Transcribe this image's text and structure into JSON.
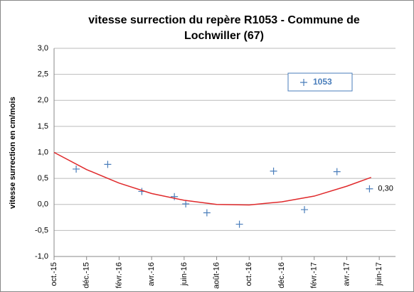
{
  "chart_data": {
    "type": "scatter",
    "title": "vitesse surrection du repère R1053 - Commune de Lochwiller (67)",
    "y_label": "vitesse surrection en cm/mois",
    "series": [
      {
        "name": "1053",
        "color": "#4a7ebb",
        "x": [
          1.36,
          3.3,
          5.4,
          7.4,
          8.1,
          9.4,
          11.4,
          13.5,
          15.4,
          17.4,
          19.4
        ],
        "values": [
          0.68,
          0.77,
          0.25,
          0.15,
          0.01,
          -0.16,
          -0.38,
          0.64,
          -0.1,
          0.63,
          0.3
        ],
        "value_labels": [
          null,
          null,
          null,
          null,
          null,
          null,
          null,
          null,
          null,
          null,
          "0,30"
        ]
      }
    ],
    "trendline": {
      "color": "#e0292b",
      "x": [
        0,
        2,
        4,
        6,
        8,
        10,
        12,
        14,
        16,
        18,
        19.5
      ],
      "values": [
        1.0,
        0.67,
        0.41,
        0.21,
        0.08,
        0.0,
        -0.01,
        0.05,
        0.16,
        0.35,
        0.52
      ]
    },
    "xlim": [
      0,
      21
    ],
    "xticks": [
      {
        "value": 0,
        "label": "oct.-15"
      },
      {
        "value": 2,
        "label": "déc.-15"
      },
      {
        "value": 4,
        "label": "févr.-16"
      },
      {
        "value": 6,
        "label": "avr.-16"
      },
      {
        "value": 8,
        "label": "juin-16"
      },
      {
        "value": 10,
        "label": "août-16"
      },
      {
        "value": 12,
        "label": "oct.-16"
      },
      {
        "value": 14,
        "label": "déc.-16"
      },
      {
        "value": 16,
        "label": "févr.-17"
      },
      {
        "value": 18,
        "label": "avr.-17"
      },
      {
        "value": 20,
        "label": "juin-17"
      }
    ],
    "ylim": [
      -1,
      3
    ],
    "yticks": [
      {
        "value": -1,
        "label": "-1,0"
      },
      {
        "value": -0.5,
        "label": "-0,5"
      },
      {
        "value": 0,
        "label": "0,0"
      },
      {
        "value": 0.5,
        "label": "0,5"
      },
      {
        "value": 1,
        "label": "1,0"
      },
      {
        "value": 1.5,
        "label": "1,5"
      },
      {
        "value": 2,
        "label": "2,0"
      },
      {
        "value": 2.5,
        "label": "2,5"
      },
      {
        "value": 3,
        "label": "3,0"
      }
    ],
    "grid": true,
    "legend": "upper right"
  }
}
